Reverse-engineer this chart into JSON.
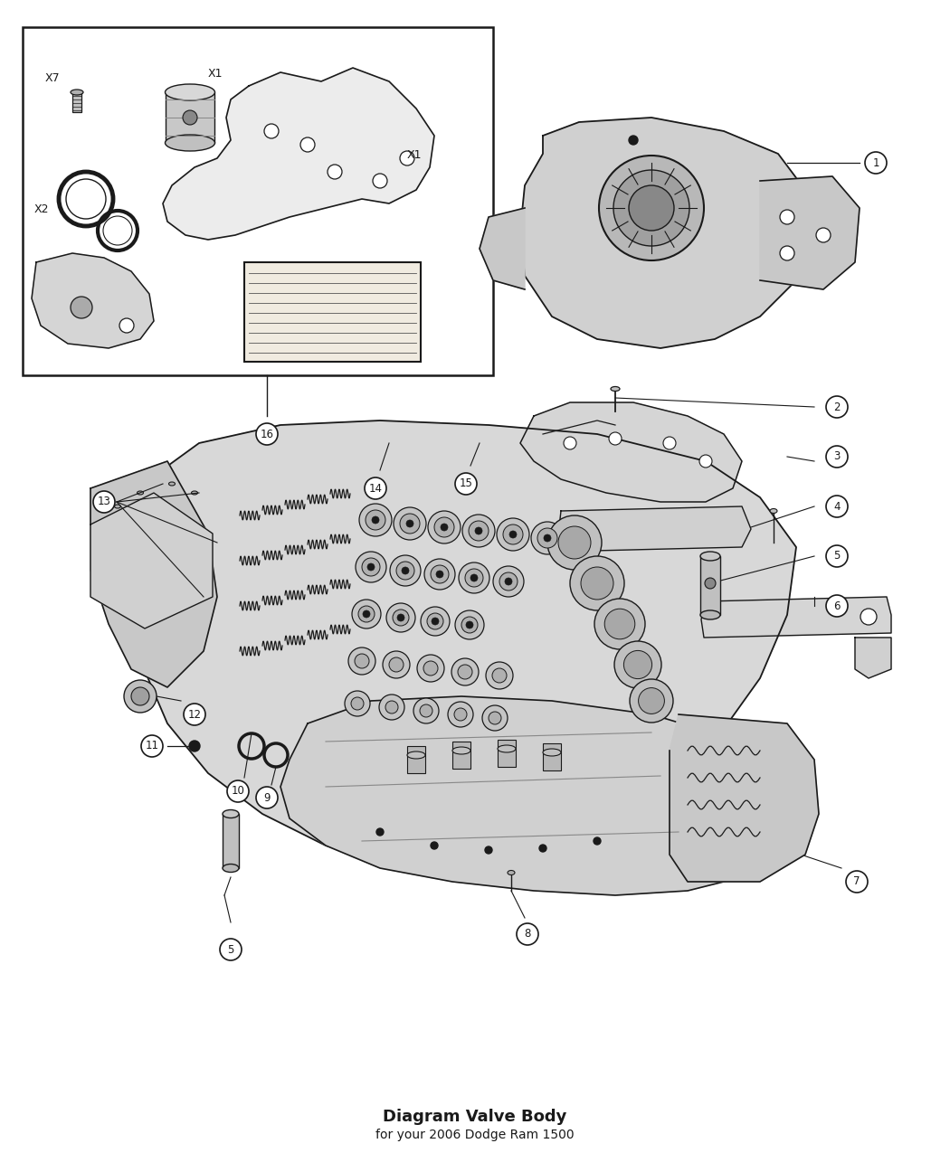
{
  "title": "Diagram Valve Body",
  "subtitle": "for your 2006 Dodge Ram 1500",
  "bg_color": "#ffffff",
  "lc": "#1a1a1a",
  "figsize": [
    10.5,
    12.75
  ],
  "dpi": 100,
  "xlim": [
    0,
    1050
  ],
  "ylim": [
    0,
    1275
  ]
}
